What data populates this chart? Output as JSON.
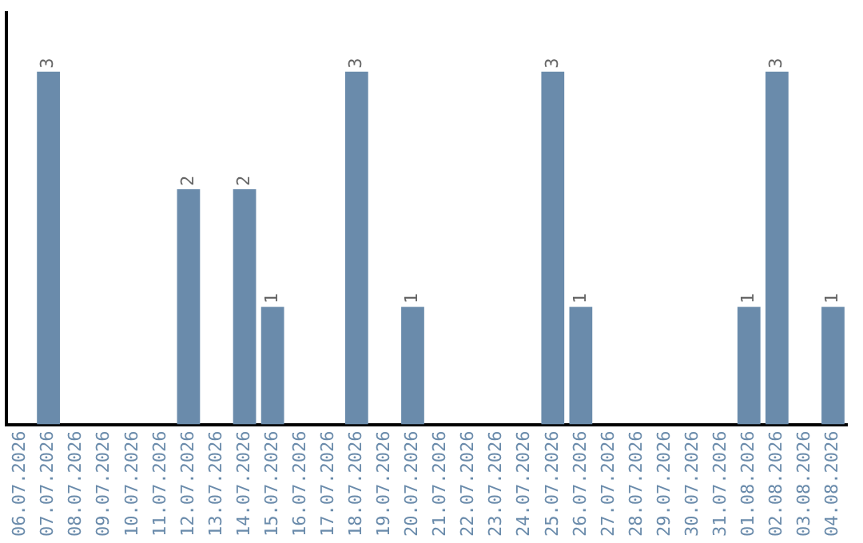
{
  "chart_data": {
    "type": "bar",
    "categories": [
      "06.07.2026",
      "07.07.2026",
      "08.07.2026",
      "09.07.2026",
      "10.07.2026",
      "11.07.2026",
      "12.07.2026",
      "13.07.2026",
      "14.07.2026",
      "15.07.2026",
      "16.07.2026",
      "17.07.2026",
      "18.07.2026",
      "19.07.2026",
      "20.07.2026",
      "21.07.2026",
      "22.07.2026",
      "23.07.2026",
      "24.07.2026",
      "25.07.2026",
      "26.07.2026",
      "27.07.2026",
      "28.07.2026",
      "29.07.2026",
      "30.07.2026",
      "31.07.2026",
      "01.08.2026",
      "02.08.2026",
      "03.08.2026",
      "04.08.2026"
    ],
    "values": [
      0,
      3,
      0,
      0,
      0,
      0,
      2,
      0,
      2,
      1,
      0,
      0,
      3,
      0,
      1,
      0,
      0,
      0,
      0,
      3,
      1,
      0,
      0,
      0,
      0,
      0,
      1,
      3,
      0,
      1
    ],
    "value_labels": [
      null,
      "3",
      null,
      null,
      null,
      null,
      "2",
      null,
      "2",
      "1",
      null,
      null,
      "3",
      null,
      "1",
      null,
      null,
      null,
      null,
      "3",
      "1",
      null,
      null,
      null,
      null,
      null,
      "1",
      "3",
      null,
      "1"
    ],
    "color": "#6a8bab",
    "tick_labels": "x",
    "grid": false,
    "legend": false
  }
}
